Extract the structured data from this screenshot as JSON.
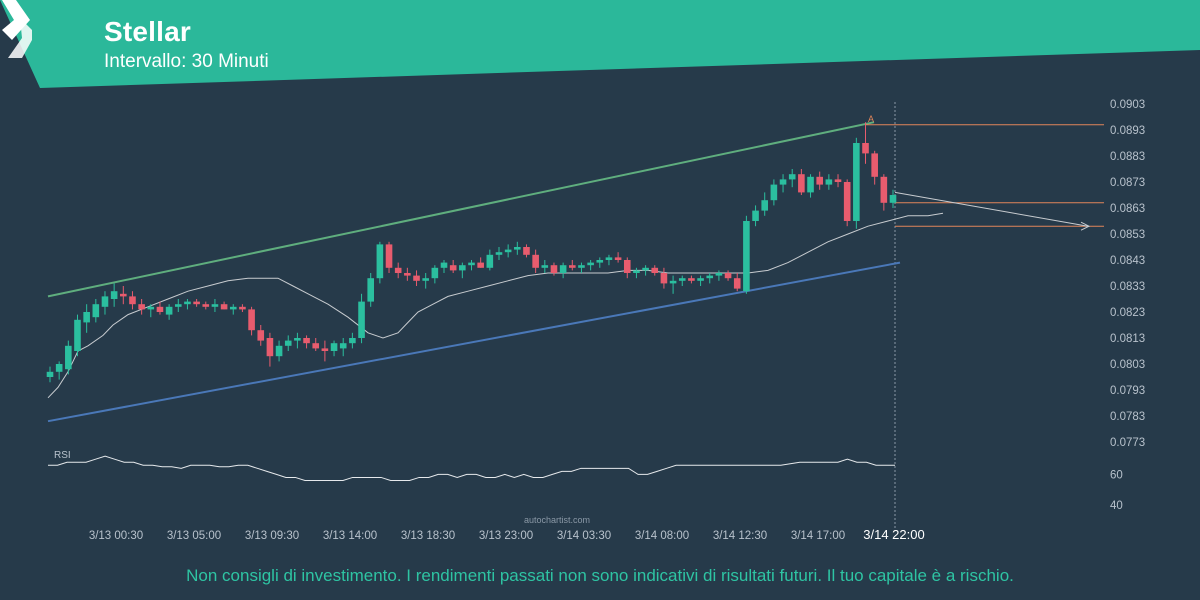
{
  "header": {
    "title": "Stellar",
    "subtitle": "Intervallo: 30 Minuti",
    "brand_color": "#2bb89a"
  },
  "footer": {
    "disclaimer": "Non consigli di investimento. I rendimenti passati non sono indicativi di risultati futuri. Il tuo capitale è a rischio.",
    "watermark": "autochartist.com"
  },
  "chart_data": {
    "type": "candlestick",
    "instrument": "Stellar",
    "interval": "30 Minuti",
    "y_ticks": [
      "0.0903",
      "0.0893",
      "0.0883",
      "0.0873",
      "0.0863",
      "0.0853",
      "0.0843",
      "0.0833",
      "0.0823",
      "0.0813",
      "0.0803",
      "0.0793",
      "0.0783",
      "0.0773"
    ],
    "ylim": [
      0.0769,
      0.0907
    ],
    "x_ticks": [
      "3/13 00:30",
      "3/13 05:00",
      "3/13 09:30",
      "3/13 14:00",
      "3/13 18:30",
      "3/13 23:00",
      "3/14 03:30",
      "3/14 08:00",
      "3/14 12:30",
      "3/14 17:00",
      "3/14 22:00"
    ],
    "colors": {
      "up": "#2bbf9f",
      "down": "#e85c6e",
      "upper_channel": "#5fae7e",
      "lower_channel": "#4a78b8",
      "levels": "#e0855a",
      "ma": "#c8ccd0"
    },
    "candles": [
      [
        0.0798,
        0.0802,
        0.0796,
        0.08
      ],
      [
        0.08,
        0.0804,
        0.0797,
        0.0803
      ],
      [
        0.0801,
        0.0812,
        0.0799,
        0.081
      ],
      [
        0.0808,
        0.0822,
        0.0806,
        0.082
      ],
      [
        0.0819,
        0.0826,
        0.0815,
        0.0823
      ],
      [
        0.0821,
        0.0828,
        0.0819,
        0.0826
      ],
      [
        0.0825,
        0.0831,
        0.0822,
        0.0829
      ],
      [
        0.0828,
        0.0834,
        0.0825,
        0.0831
      ],
      [
        0.083,
        0.0833,
        0.0826,
        0.0829
      ],
      [
        0.0829,
        0.0831,
        0.0824,
        0.0826
      ],
      [
        0.0826,
        0.0828,
        0.0822,
        0.0824
      ],
      [
        0.0824,
        0.0826,
        0.0821,
        0.0825
      ],
      [
        0.0825,
        0.0827,
        0.0822,
        0.0823
      ],
      [
        0.0822,
        0.0826,
        0.082,
        0.0825
      ],
      [
        0.0825,
        0.0828,
        0.0823,
        0.0826
      ],
      [
        0.0826,
        0.0828,
        0.0824,
        0.0827
      ],
      [
        0.0827,
        0.0828,
        0.0825,
        0.0826
      ],
      [
        0.0826,
        0.0827,
        0.0824,
        0.0825
      ],
      [
        0.0825,
        0.0828,
        0.0823,
        0.0826
      ],
      [
        0.0826,
        0.0827,
        0.0824,
        0.0824
      ],
      [
        0.0824,
        0.0826,
        0.0822,
        0.0825
      ],
      [
        0.0825,
        0.0826,
        0.0823,
        0.0824
      ],
      [
        0.0824,
        0.0825,
        0.0814,
        0.0816
      ],
      [
        0.0816,
        0.0818,
        0.081,
        0.0812
      ],
      [
        0.0813,
        0.0815,
        0.0802,
        0.0806
      ],
      [
        0.0806,
        0.0812,
        0.0804,
        0.081
      ],
      [
        0.081,
        0.0814,
        0.0808,
        0.0812
      ],
      [
        0.0812,
        0.0815,
        0.0809,
        0.0813
      ],
      [
        0.0813,
        0.0814,
        0.0809,
        0.0811
      ],
      [
        0.0811,
        0.0813,
        0.0808,
        0.0809
      ],
      [
        0.0809,
        0.0812,
        0.0804,
        0.0808
      ],
      [
        0.0808,
        0.0812,
        0.0806,
        0.0811
      ],
      [
        0.0809,
        0.0813,
        0.0806,
        0.0811
      ],
      [
        0.0811,
        0.0815,
        0.0809,
        0.0813
      ],
      [
        0.0813,
        0.083,
        0.0811,
        0.0827
      ],
      [
        0.0827,
        0.0838,
        0.0825,
        0.0836
      ],
      [
        0.0836,
        0.085,
        0.0834,
        0.0849
      ],
      [
        0.0849,
        0.085,
        0.0838,
        0.084
      ],
      [
        0.084,
        0.0842,
        0.0836,
        0.0838
      ],
      [
        0.0838,
        0.084,
        0.0835,
        0.0837
      ],
      [
        0.0837,
        0.0839,
        0.0833,
        0.0835
      ],
      [
        0.0835,
        0.0838,
        0.0832,
        0.0836
      ],
      [
        0.0836,
        0.0841,
        0.0834,
        0.084
      ],
      [
        0.084,
        0.0843,
        0.0838,
        0.0842
      ],
      [
        0.0841,
        0.0843,
        0.0838,
        0.0839
      ],
      [
        0.0839,
        0.0842,
        0.0836,
        0.0841
      ],
      [
        0.0841,
        0.0843,
        0.0839,
        0.0842
      ],
      [
        0.0842,
        0.0844,
        0.084,
        0.084
      ],
      [
        0.084,
        0.0847,
        0.0839,
        0.0845
      ],
      [
        0.0845,
        0.0848,
        0.0843,
        0.0846
      ],
      [
        0.0846,
        0.0849,
        0.0844,
        0.0847
      ],
      [
        0.0847,
        0.085,
        0.0845,
        0.0848
      ],
      [
        0.0848,
        0.0849,
        0.0844,
        0.0845
      ],
      [
        0.0845,
        0.0847,
        0.0838,
        0.084
      ],
      [
        0.084,
        0.0843,
        0.0838,
        0.0841
      ],
      [
        0.0841,
        0.0842,
        0.0837,
        0.0838
      ],
      [
        0.0838,
        0.0842,
        0.0836,
        0.0841
      ],
      [
        0.0841,
        0.0843,
        0.0839,
        0.084
      ],
      [
        0.084,
        0.0842,
        0.0838,
        0.0841
      ],
      [
        0.0841,
        0.0843,
        0.0839,
        0.0842
      ],
      [
        0.0842,
        0.0844,
        0.084,
        0.0843
      ],
      [
        0.0843,
        0.0845,
        0.0841,
        0.0844
      ],
      [
        0.0844,
        0.0846,
        0.0842,
        0.0843
      ],
      [
        0.0843,
        0.0844,
        0.0836,
        0.0838
      ],
      [
        0.0838,
        0.084,
        0.0836,
        0.0839
      ],
      [
        0.0839,
        0.0841,
        0.0837,
        0.084
      ],
      [
        0.084,
        0.0841,
        0.0837,
        0.0838
      ],
      [
        0.0838,
        0.084,
        0.0832,
        0.0834
      ],
      [
        0.0834,
        0.0837,
        0.083,
        0.0835
      ],
      [
        0.0835,
        0.0837,
        0.0833,
        0.0836
      ],
      [
        0.0836,
        0.0837,
        0.0834,
        0.0835
      ],
      [
        0.0835,
        0.0837,
        0.0833,
        0.0836
      ],
      [
        0.0836,
        0.0838,
        0.0834,
        0.0837
      ],
      [
        0.0837,
        0.0839,
        0.0835,
        0.0838
      ],
      [
        0.0838,
        0.0839,
        0.0835,
        0.0836
      ],
      [
        0.0836,
        0.0838,
        0.0831,
        0.0832
      ],
      [
        0.0831,
        0.086,
        0.083,
        0.0858
      ],
      [
        0.0858,
        0.0864,
        0.0856,
        0.0862
      ],
      [
        0.0862,
        0.0869,
        0.086,
        0.0866
      ],
      [
        0.0866,
        0.0874,
        0.0864,
        0.0872
      ],
      [
        0.0872,
        0.0876,
        0.0869,
        0.0874
      ],
      [
        0.0874,
        0.0878,
        0.0871,
        0.0876
      ],
      [
        0.0876,
        0.0878,
        0.0868,
        0.0869
      ],
      [
        0.0869,
        0.0876,
        0.0867,
        0.0875
      ],
      [
        0.0875,
        0.0877,
        0.087,
        0.0872
      ],
      [
        0.0872,
        0.0876,
        0.087,
        0.0874
      ],
      [
        0.0874,
        0.0876,
        0.0871,
        0.0873
      ],
      [
        0.0873,
        0.0874,
        0.0856,
        0.0858
      ],
      [
        0.0858,
        0.089,
        0.0855,
        0.0888
      ],
      [
        0.0888,
        0.0896,
        0.088,
        0.0884
      ],
      [
        0.0884,
        0.0885,
        0.0872,
        0.0875
      ],
      [
        0.0875,
        0.0876,
        0.0862,
        0.0865
      ],
      [
        0.0865,
        0.087,
        0.0863,
        0.0868
      ]
    ],
    "moving_average": [
      [
        0,
        0.079
      ],
      [
        10,
        0.0794
      ],
      [
        20,
        0.08
      ],
      [
        30,
        0.0808
      ],
      [
        40,
        0.081
      ],
      [
        55,
        0.0814
      ],
      [
        65,
        0.0818
      ],
      [
        80,
        0.0822
      ],
      [
        100,
        0.0825
      ],
      [
        120,
        0.0828
      ],
      [
        140,
        0.0831
      ],
      [
        160,
        0.0833
      ],
      [
        180,
        0.0835
      ],
      [
        200,
        0.0836
      ],
      [
        215,
        0.0836
      ],
      [
        230,
        0.0836
      ],
      [
        245,
        0.0833
      ],
      [
        260,
        0.083
      ],
      [
        280,
        0.0826
      ],
      [
        300,
        0.0821
      ],
      [
        320,
        0.0815
      ],
      [
        335,
        0.0813
      ],
      [
        350,
        0.0815
      ],
      [
        360,
        0.0819
      ],
      [
        370,
        0.0823
      ],
      [
        385,
        0.0826
      ],
      [
        400,
        0.0829
      ],
      [
        420,
        0.0831
      ],
      [
        440,
        0.0833
      ],
      [
        460,
        0.0835
      ],
      [
        480,
        0.0837
      ],
      [
        500,
        0.0838
      ],
      [
        520,
        0.0838
      ],
      [
        540,
        0.0838
      ],
      [
        560,
        0.0838
      ],
      [
        580,
        0.0839
      ],
      [
        600,
        0.0839
      ],
      [
        620,
        0.0838
      ],
      [
        640,
        0.0838
      ],
      [
        660,
        0.0838
      ],
      [
        680,
        0.0838
      ],
      [
        700,
        0.0838
      ],
      [
        720,
        0.0839
      ],
      [
        740,
        0.0842
      ],
      [
        760,
        0.0846
      ],
      [
        780,
        0.085
      ],
      [
        800,
        0.0853
      ],
      [
        820,
        0.0856
      ],
      [
        840,
        0.0858
      ],
      [
        860,
        0.086
      ],
      [
        880,
        0.086
      ],
      [
        895,
        0.0861
      ]
    ],
    "upper_channel": [
      [
        0,
        0.0829
      ],
      [
        826,
        0.0896
      ]
    ],
    "lower_channel": [
      [
        0,
        0.0781
      ],
      [
        852,
        0.0842
      ]
    ],
    "resistance_level": {
      "value": 0.0895,
      "label": "A"
    },
    "level_mid": 0.0865,
    "level_target": 0.0856,
    "forecast_arrow": {
      "from": 0.0869,
      "to": 0.0856
    },
    "rsi": {
      "label": "RSI",
      "y_ticks": [
        "60",
        "40"
      ],
      "ylim": [
        30,
        80
      ],
      "values": [
        66,
        66,
        68,
        68,
        68,
        70,
        72,
        70,
        68,
        68,
        66,
        66,
        65,
        65,
        64,
        66,
        66,
        66,
        65,
        65,
        66,
        66,
        64,
        62,
        60,
        58,
        58,
        56,
        56,
        56,
        56,
        56,
        58,
        58,
        58,
        58,
        56,
        56,
        56,
        58,
        58,
        60,
        60,
        58,
        60,
        60,
        58,
        58,
        60,
        58,
        60,
        58,
        58,
        60,
        62,
        62,
        64,
        64,
        64,
        64,
        64,
        64,
        60,
        60,
        62,
        64,
        66,
        66,
        66,
        66,
        66,
        66,
        66,
        66,
        66,
        66,
        66,
        66,
        67,
        68,
        68,
        68,
        68,
        68,
        70,
        68,
        68,
        66,
        66,
        66
      ]
    }
  }
}
